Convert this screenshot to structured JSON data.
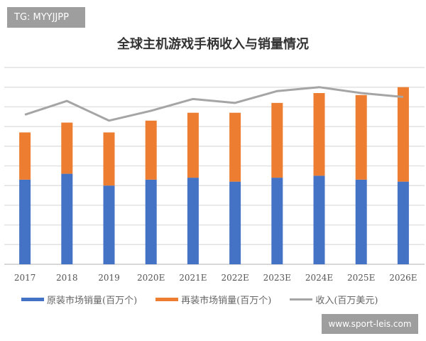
{
  "watermark_top": "TG: MYYJJPP",
  "watermark_bottom": "www.sport-leis.com",
  "chart_data": {
    "type": "bar",
    "stacked": true,
    "title": "全球主机游戏手柄收入与销量情况",
    "categories": [
      "2017",
      "2018",
      "2019",
      "2020E",
      "2021E",
      "2022E",
      "2023E",
      "2024E",
      "2025E",
      "2026E"
    ],
    "series": [
      {
        "name": "原装市场销量(百万个)",
        "type": "bar",
        "color": "#4472c4",
        "values": [
          4.3,
          4.6,
          4.0,
          4.3,
          4.4,
          4.2,
          4.4,
          4.5,
          4.3,
          4.2
        ]
      },
      {
        "name": "再装市场销量(百万个)",
        "type": "bar",
        "color": "#ed7d31",
        "values": [
          2.4,
          2.6,
          2.7,
          3.0,
          3.3,
          3.5,
          3.8,
          4.2,
          4.3,
          4.8
        ]
      },
      {
        "name": "收入(百万美元)",
        "type": "line",
        "color": "#a5a5a5",
        "values": [
          7.6,
          8.3,
          7.3,
          7.8,
          8.4,
          8.2,
          8.8,
          9.0,
          8.7,
          8.5
        ]
      }
    ],
    "ylim": [
      0,
      10
    ],
    "y_tick_labels_shown": false,
    "grid": true,
    "legend": "bottom"
  }
}
